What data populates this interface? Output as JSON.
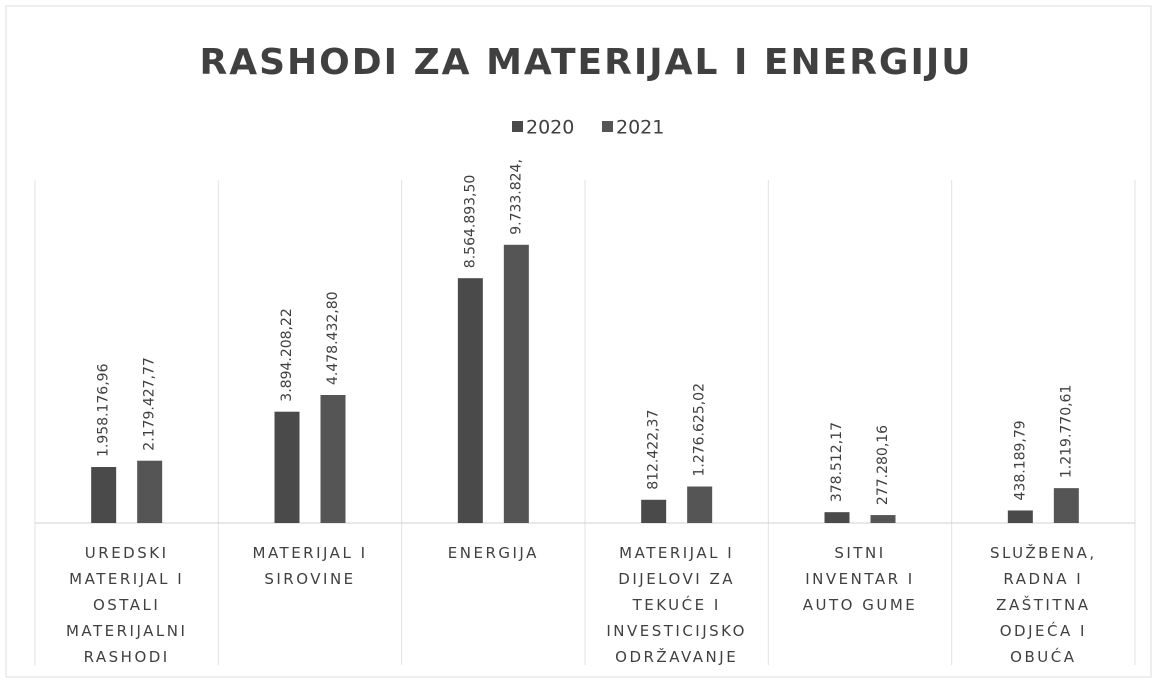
{
  "chart_data": {
    "type": "bar",
    "title": "RASHODI ZA MATERIJAL I ENERGIJU",
    "categories": [
      "UREDSKI MATERIJAL I OSTALI MATERIJALNI RASHODI",
      "MATERIJAL I SIROVINE",
      "ENERGIJA",
      "MATERIJAL I DIJELOVI ZA TEKUĆE I INVESTICIJSKO ODRŽAVANJE",
      "SITNI INVENTAR I AUTO GUME",
      "SLUŽBENA, RADNA I ZAŠTITNA ODJEĆA I OBUĆA"
    ],
    "series": [
      {
        "name": "2020",
        "color": "#4a4a4a",
        "values": [
          1958176.96,
          3894208.22,
          8564893.5,
          812422.37,
          378512.17,
          438189.79
        ],
        "value_labels": [
          "1.958.176,96",
          "3.894.208,22",
          "8.564.893,50",
          "812.422,37",
          "378.512,17",
          "438.189,79"
        ]
      },
      {
        "name": "2021",
        "color": "#555555",
        "values": [
          2179427.77,
          4478432.8,
          9733824,
          1276625.02,
          277280.16,
          1219770.61
        ],
        "value_labels": [
          "2.179.427,77",
          "4.478.432,80",
          "9.733.824,",
          "1.276.625,02",
          "277.280,16",
          "1.219.770,61"
        ]
      }
    ],
    "ylim": [
      0,
      12000000
    ],
    "legend": "top"
  }
}
